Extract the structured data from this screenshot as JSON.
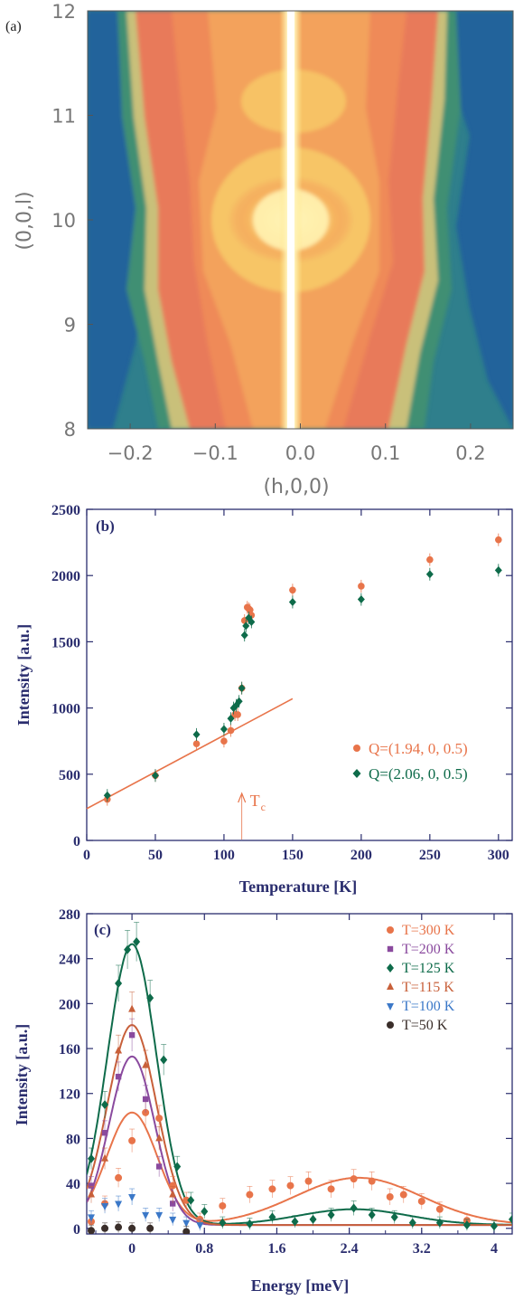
{
  "colors": {
    "orange": "#e8744a",
    "green": "#0e6b4a",
    "navy": "#2a2d6e",
    "purple": "#8a4a9e",
    "sienna": "#c8603a",
    "blue": "#3b78c8",
    "dark": "#3a2e2a"
  },
  "chart_data": [
    {
      "type": "heatmap",
      "panel_label": "(a)",
      "xlabel": "(h,0,0)",
      "ylabel": "(0,0,l)",
      "x_ticks": [
        "−0.2",
        "−0.1",
        "0.0",
        "0.1",
        "0.2"
      ],
      "y_ticks": [
        "12",
        "11",
        "10",
        "9",
        "8"
      ],
      "xlim": [
        -0.25,
        0.25
      ],
      "ylim": [
        8,
        12
      ],
      "description_values": {
        "colormap": [
          "blue",
          "green",
          "khaki",
          "orange",
          "yellow",
          "white"
        ],
        "features": [
          "sharp vertical rod at h=0",
          "broad diffuse maximum centred at (0,0,10)"
        ]
      }
    },
    {
      "type": "scatter",
      "panel_label": "(b)",
      "xlabel": "Temperature [K]",
      "ylabel": "Intensity [a.u.]",
      "xlim": [
        0,
        310
      ],
      "ylim": [
        0,
        2500
      ],
      "x_ticks": [
        0,
        50,
        100,
        150,
        200,
        250,
        300
      ],
      "y_ticks": [
        0,
        500,
        1000,
        1500,
        2000,
        2500
      ],
      "annotation": "T",
      "annotation_sub": "c",
      "annotation_x": 113,
      "series": [
        {
          "name": "Q=(1.94, 0, 0.5)",
          "marker": "circle",
          "x": [
            15,
            50,
            80,
            100,
            105,
            108,
            110,
            113,
            115,
            117,
            118,
            119,
            120,
            150,
            200,
            250,
            300
          ],
          "y": [
            310,
            490,
            730,
            750,
            830,
            950,
            950,
            1150,
            1660,
            1760,
            1750,
            1740,
            1700,
            1890,
            1920,
            2120,
            2270
          ]
        },
        {
          "name": "Q=(2.06, 0, 0.5)",
          "marker": "diamond",
          "x": [
            15,
            50,
            80,
            100,
            105,
            107,
            109,
            111,
            113,
            115,
            116,
            118,
            120,
            150,
            200,
            250,
            300
          ],
          "y": [
            340,
            490,
            800,
            840,
            920,
            1000,
            1020,
            1050,
            1150,
            1550,
            1620,
            1680,
            1650,
            1800,
            1820,
            2010,
            2040
          ]
        }
      ],
      "fit_line": {
        "x": [
          0,
          150
        ],
        "y": [
          240,
          1070
        ]
      }
    },
    {
      "type": "line",
      "panel_label": "(c)",
      "xlabel": "Energy [meV]",
      "ylabel": "Intensity [a.u.]",
      "xlim": [
        -0.5,
        4.2
      ],
      "ylim": [
        -5,
        280
      ],
      "x_ticks": [
        0,
        0.8,
        1.6,
        2.4,
        3.2,
        4
      ],
      "y_ticks": [
        0,
        40,
        80,
        120,
        160,
        200,
        240,
        280
      ],
      "series": [
        {
          "name": "T=300 K",
          "marker": "circle",
          "x": [
            -0.45,
            -0.3,
            -0.15,
            0,
            0.15,
            0.3,
            0.45,
            0.6,
            0.75,
            1.0,
            1.3,
            1.55,
            1.75,
            1.95,
            2.2,
            2.45,
            2.65,
            2.85,
            3.0,
            3.2,
            3.4,
            3.7
          ],
          "y": [
            6,
            22,
            45,
            78,
            103,
            98,
            38,
            25,
            8,
            20,
            30,
            35,
            38,
            42,
            35,
            44,
            42,
            28,
            30,
            24,
            17,
            7
          ],
          "fit": {
            "peaks": [
              [
                0.0,
                100,
                0.28
              ],
              [
                2.5,
                42,
                0.7
              ]
            ],
            "base": 3
          }
        },
        {
          "name": "T=200 K",
          "marker": "square",
          "x": [
            -0.45,
            -0.3,
            -0.15,
            0,
            0.15,
            0.3,
            0.45
          ],
          "y": [
            38,
            85,
            135,
            172,
            115,
            55,
            22
          ],
          "fit": {
            "peaks": [
              [
                0.0,
                150,
                0.25
              ]
            ],
            "base": 3
          }
        },
        {
          "name": "T=125 K",
          "marker": "diamond",
          "x": [
            -0.45,
            -0.3,
            -0.15,
            -0.05,
            0.05,
            0.2,
            0.35,
            0.5,
            0.65,
            0.8,
            1.0,
            1.3,
            1.55,
            1.8,
            2.0,
            2.2,
            2.45,
            2.65,
            2.9,
            3.1,
            3.4,
            3.7,
            4.0,
            4.2
          ],
          "y": [
            62,
            110,
            218,
            248,
            255,
            205,
            150,
            55,
            25,
            15,
            5,
            4,
            10,
            6,
            8,
            12,
            18,
            12,
            10,
            5,
            5,
            3,
            2,
            8
          ],
          "fit": {
            "peaks": [
              [
                0.0,
                250,
                0.27
              ],
              [
                2.45,
                14,
                0.6
              ]
            ],
            "base": 3
          }
        },
        {
          "name": "T=115 K",
          "marker": "triangle-up",
          "x": [
            -0.45,
            -0.3,
            -0.15,
            0,
            0.15,
            0.3,
            0.45
          ],
          "y": [
            30,
            62,
            158,
            195,
            145,
            80,
            30
          ],
          "fit": {
            "peaks": [
              [
                0.0,
                178,
                0.27
              ]
            ],
            "base": 3
          }
        },
        {
          "name": "T=100 K",
          "marker": "triangle-down",
          "x": [
            -0.45,
            -0.3,
            -0.15,
            0,
            0.15,
            0.3,
            0.45,
            0.6,
            0.75
          ],
          "y": [
            10,
            20,
            22,
            28,
            12,
            12,
            8,
            5,
            3
          ]
        },
        {
          "name": "T=50 K",
          "marker": "circle",
          "x": [
            -0.45,
            -0.3,
            -0.15,
            0,
            0.2,
            0.6
          ],
          "y": [
            -2,
            0,
            1,
            0,
            0,
            -3
          ]
        }
      ]
    }
  ]
}
